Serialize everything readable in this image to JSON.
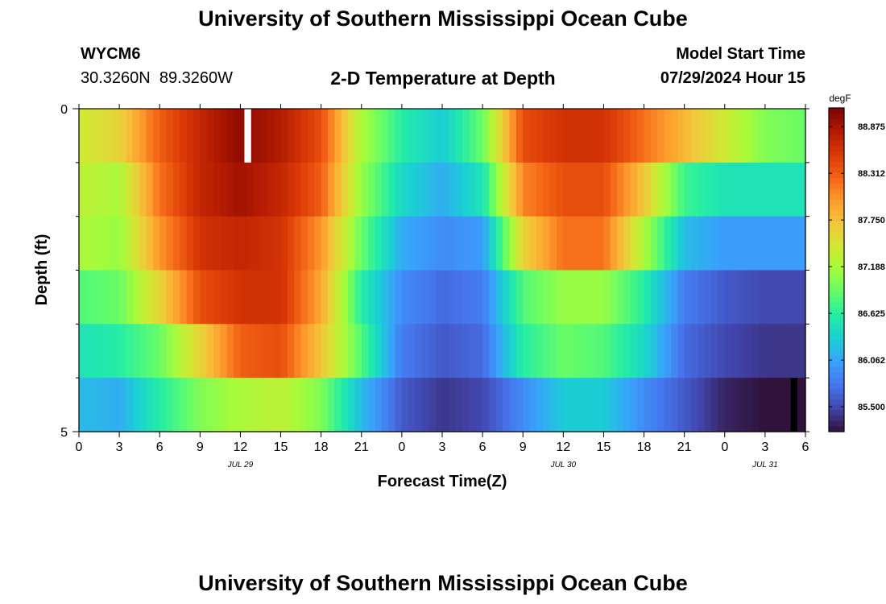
{
  "header": {
    "title": "University of Southern Mississippi Ocean Cube",
    "station_id": "WYCM6",
    "station_coords": "30.3260N  89.3260W",
    "subtitle": "2-D Temperature at Depth",
    "model_start_label": "Model Start Time",
    "model_start_value": "07/29/2024 Hour 15"
  },
  "footer": {
    "title": "University of Southern Mississippi Ocean Cube"
  },
  "colors": {
    "palette": [
      "#30123b",
      "#4145ab",
      "#4675ed",
      "#39a2fc",
      "#1bcfd4",
      "#24eca6",
      "#61fc6c",
      "#a4fc3b",
      "#d1e834",
      "#f3c63a",
      "#fe9b2d",
      "#f36315",
      "#d93806",
      "#b11901",
      "#7a0403"
    ],
    "gap_white": "#ffffff",
    "gap_black": "#000000"
  },
  "chart_data": {
    "type": "heatmap",
    "title": "2-D Temperature at Depth",
    "xlabel": "Forecast Time(Z)",
    "ylabel": "Depth (ft)",
    "colorbar_label": "degF",
    "colorbar_ticks": [
      "85.500",
      "86.062",
      "86.625",
      "87.188",
      "87.750",
      "88.312",
      "88.875"
    ],
    "colorbar_tick_values": [
      85.5,
      86.062,
      86.625,
      87.188,
      87.75,
      88.312,
      88.875
    ],
    "value_range": [
      85.2,
      89.1
    ],
    "x_range_hours": [
      0,
      54
    ],
    "x_ticks_hours": [
      0,
      3,
      6,
      9,
      12,
      15,
      18,
      21,
      24,
      27,
      30,
      33,
      36,
      39,
      42,
      45,
      48,
      51,
      54
    ],
    "x_tick_labels": [
      "0",
      "3",
      "6",
      "9",
      "12",
      "15",
      "18",
      "21",
      "0",
      "3",
      "6",
      "9",
      "12",
      "15",
      "18",
      "21",
      "0",
      "3",
      "6"
    ],
    "date_labels": [
      {
        "hour": 12,
        "text": "JUL 29"
      },
      {
        "hour": 36,
        "text": "JUL 30"
      },
      {
        "hour": 51,
        "text": "JUL 31"
      }
    ],
    "y_range_ft": [
      0,
      5
    ],
    "y_tick_labels": [
      "0",
      "5"
    ],
    "depth_rows": [
      {
        "hours": [
          0,
          3,
          6,
          9,
          12,
          15,
          18,
          21,
          24,
          27,
          30,
          33,
          36,
          39,
          42,
          45,
          48,
          51,
          54
        ],
        "values": [
          87.4,
          87.6,
          88.3,
          88.7,
          89.0,
          88.8,
          88.4,
          87.2,
          86.6,
          86.3,
          86.9,
          88.4,
          88.6,
          88.6,
          88.2,
          87.8,
          87.4,
          87.0,
          86.9
        ]
      },
      {
        "hours": [
          0,
          3,
          6,
          9,
          12,
          15,
          18,
          21,
          24,
          27,
          30,
          33,
          36,
          39,
          42,
          45,
          48,
          51,
          54
        ],
        "values": [
          87.3,
          87.2,
          88.2,
          88.7,
          88.9,
          88.7,
          88.3,
          87.1,
          86.4,
          86.1,
          86.5,
          88.1,
          88.4,
          88.4,
          87.7,
          86.7,
          86.5,
          86.5,
          86.5
        ]
      },
      {
        "hours": [
          0,
          3,
          6,
          9,
          12,
          15,
          18,
          21,
          24,
          27,
          30,
          33,
          36,
          39,
          42,
          45,
          48,
          51,
          54
        ],
        "values": [
          87.2,
          87.1,
          88.0,
          88.6,
          88.7,
          88.6,
          88.0,
          86.9,
          86.1,
          85.9,
          86.0,
          87.6,
          88.2,
          88.2,
          87.2,
          86.2,
          86.0,
          86.0,
          86.0
        ]
      },
      {
        "hours": [
          0,
          3,
          6,
          9,
          12,
          15,
          18,
          21,
          24,
          27,
          30,
          33,
          36,
          39,
          42,
          45,
          48,
          51,
          54
        ],
        "values": [
          86.8,
          86.9,
          87.6,
          88.4,
          88.6,
          88.6,
          87.9,
          86.6,
          85.9,
          85.7,
          85.8,
          86.8,
          87.1,
          87.1,
          86.6,
          85.8,
          85.6,
          85.5,
          85.5
        ]
      },
      {
        "hours": [
          0,
          3,
          6,
          9,
          12,
          15,
          18,
          21,
          24,
          27,
          30,
          33,
          36,
          39,
          42,
          45,
          48,
          51,
          54
        ],
        "values": [
          86.5,
          86.6,
          86.9,
          87.6,
          88.3,
          88.4,
          87.7,
          86.8,
          85.8,
          85.6,
          85.7,
          86.6,
          86.9,
          86.8,
          86.4,
          85.7,
          85.5,
          85.4,
          85.4
        ]
      },
      {
        "hours": [
          0,
          3,
          6,
          9,
          12,
          15,
          18,
          21,
          24,
          27,
          30,
          33,
          36,
          39,
          42,
          45,
          48,
          51,
          54
        ],
        "values": [
          86.2,
          86.1,
          86.6,
          87.0,
          87.2,
          87.3,
          87.0,
          86.2,
          85.6,
          85.4,
          85.5,
          85.9,
          86.3,
          86.3,
          85.9,
          85.6,
          85.3,
          85.2,
          85.2
        ]
      }
    ],
    "missing_cells": [
      {
        "depth_row": 0,
        "hour_start": 12.3,
        "hour_end": 12.8,
        "fill": "white"
      },
      {
        "depth_row": 5,
        "hour_start": 52.9,
        "hour_end": 53.4,
        "fill": "black"
      }
    ]
  }
}
